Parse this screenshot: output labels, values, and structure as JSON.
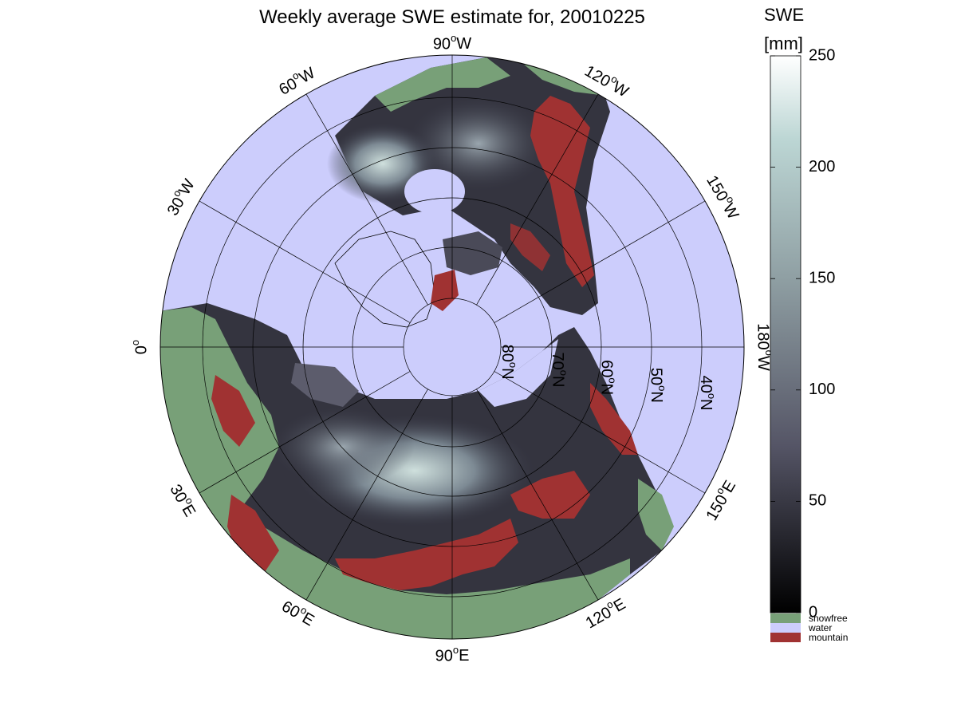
{
  "title": "Weekly average SWE estimate for, 20010225",
  "map": {
    "longitude_labels": [
      {
        "text": "90°W",
        "deg": "90",
        "suffix": "W"
      },
      {
        "text": "120°W",
        "deg": "120",
        "suffix": "W"
      },
      {
        "text": "150°W",
        "deg": "150",
        "suffix": "W"
      },
      {
        "text": "180°W",
        "deg": "180",
        "suffix": "W"
      },
      {
        "text": "150°E",
        "deg": "150",
        "suffix": "E"
      },
      {
        "text": "120°E",
        "deg": "120",
        "suffix": "E"
      },
      {
        "text": "90°E",
        "deg": "90",
        "suffix": "E"
      },
      {
        "text": "60°E",
        "deg": "60",
        "suffix": "E"
      },
      {
        "text": "30°E",
        "deg": "30",
        "suffix": "E"
      },
      {
        "text": "0°",
        "deg": "0",
        "suffix": ""
      },
      {
        "text": "30°W",
        "deg": "30",
        "suffix": "W"
      },
      {
        "text": "60°W",
        "deg": "60",
        "suffix": "W"
      }
    ],
    "latitude_labels": [
      {
        "text": "80°N",
        "deg": "80",
        "suffix": "N"
      },
      {
        "text": "70°N",
        "deg": "70",
        "suffix": "N"
      },
      {
        "text": "60°N",
        "deg": "60",
        "suffix": "N"
      },
      {
        "text": "50°N",
        "deg": "50",
        "suffix": "N"
      },
      {
        "text": "40°N",
        "deg": "40",
        "suffix": "N"
      }
    ]
  },
  "colorbar": {
    "label_line1": "SWE",
    "label_line2": "[mm]",
    "ticks": [
      "250",
      "200",
      "150",
      "100",
      "50",
      "0"
    ],
    "colors": {
      "max": "#ffffff",
      "high": "#bcd6d4",
      "mid": "#8f9fa3",
      "low": "#555566",
      "min": "#000000"
    }
  },
  "legend": [
    {
      "label": "snowfree",
      "color": "#78a078"
    },
    {
      "label": "water",
      "color": "#cccdfc"
    },
    {
      "label": "mountain",
      "color": "#a03232"
    }
  ]
}
